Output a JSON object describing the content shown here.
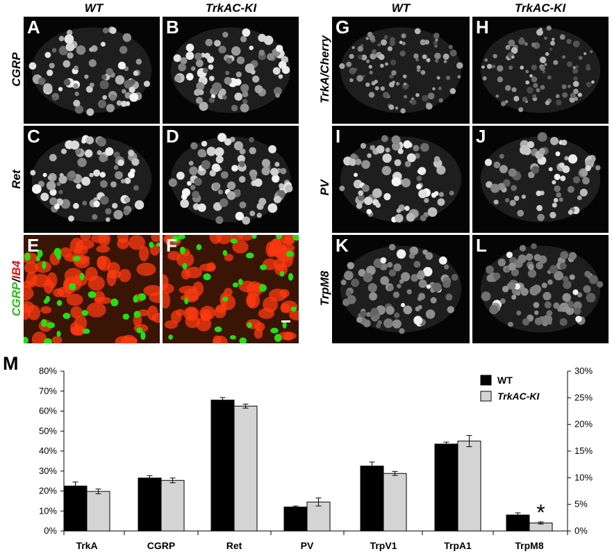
{
  "figure": {
    "column_headers": [
      "WT",
      "TrkAC-KI",
      "WT",
      "TrkAC-KI"
    ],
    "row_labels_left": [
      "CGRP",
      "Ret"
    ],
    "row_label_color": {
      "part1": "CGRP",
      "sep": "/",
      "part2": "IB4"
    },
    "row_labels_right": [
      "TrkA/Cherry",
      "PV",
      "TrpM8"
    ],
    "panels": [
      {
        "letter": "A",
        "tissue": "cgrp"
      },
      {
        "letter": "B",
        "tissue": "cgrp"
      },
      {
        "letter": "C",
        "tissue": "ret"
      },
      {
        "letter": "D",
        "tissue": "ret"
      },
      {
        "letter": "E",
        "tissue": "color"
      },
      {
        "letter": "F",
        "tissue": "color"
      },
      {
        "letter": "G",
        "tissue": "trka"
      },
      {
        "letter": "H",
        "tissue": "trka"
      },
      {
        "letter": "I",
        "tissue": "pv"
      },
      {
        "letter": "J",
        "tissue": "pv"
      },
      {
        "letter": "K",
        "tissue": "trpm8"
      },
      {
        "letter": "L",
        "tissue": "trpm8"
      }
    ],
    "colors": {
      "green": "#22e010",
      "red": "#ff3a10",
      "black": "#000000"
    }
  },
  "chart_panel_letter": "M",
  "chart_data": {
    "type": "bar",
    "categories": [
      "TrkA",
      "CGRP",
      "Ret",
      "PV",
      "TrpV1",
      "TrpA1",
      "TrpM8"
    ],
    "series": [
      {
        "name": "WT",
        "color": "#000000",
        "values": [
          22.5,
          26.5,
          65.5,
          12.0,
          32.5,
          43.5,
          3.0
        ],
        "errors": [
          2.0,
          1.2,
          1.3,
          0.5,
          2.0,
          1.0,
          0.4
        ]
      },
      {
        "name": "TrkAC-KI",
        "color": "#d4d4d4",
        "values": [
          19.8,
          25.3,
          62.5,
          14.5,
          28.8,
          45.0,
          1.5
        ],
        "errors": [
          1.2,
          1.2,
          1.0,
          2.0,
          1.0,
          2.8,
          0.2
        ]
      }
    ],
    "secondary_axis_categories": [
      "TrpM8"
    ],
    "ylim_left": [
      0,
      80
    ],
    "ylim_right": [
      0,
      30
    ],
    "left_ticks": [
      "0%",
      "10%",
      "20%",
      "30%",
      "40%",
      "50%",
      "60%",
      "70%",
      "80%"
    ],
    "right_ticks": [
      "0%",
      "5%",
      "10%",
      "15%",
      "20%",
      "25%",
      "30%"
    ],
    "annotation": "*",
    "annotation_category": "TrpM8",
    "legend": "top-right"
  }
}
